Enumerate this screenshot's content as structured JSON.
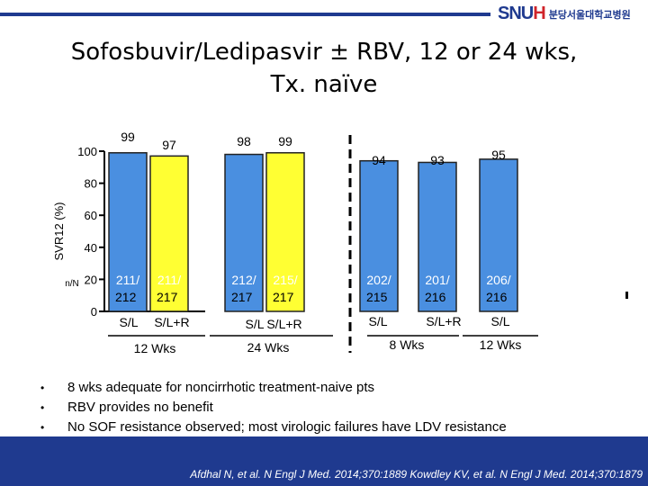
{
  "header": {
    "logo_mark": "SNU",
    "logo_mark_accent": "H",
    "logo_text": "분당서울대학교병원"
  },
  "title_line1": "Sofosbuvir/Ledipasvir ± RBV, 12 or 24 wks,",
  "title_line2": "Tx. naïve",
  "chart_data": {
    "type": "bar",
    "ylabel": "SVR12 (%)",
    "ylim": [
      0,
      100
    ],
    "yticks": [
      "0",
      "20",
      "40",
      "60",
      "80",
      "100"
    ],
    "np_label": "n/N",
    "bars": [
      {
        "regimen": "S/L",
        "value": 99,
        "n": "211/ 212",
        "color": "#4a8fe0"
      },
      {
        "regimen": "S/L+R",
        "value": 97,
        "n": "211/ 217",
        "color": "#ffff33"
      },
      {
        "regimen": "S/L",
        "value": 98,
        "n": "212/ 217",
        "color": "#4a8fe0"
      },
      {
        "regimen": "S/L+R",
        "value": 99,
        "n": "215/ 217",
        "color": "#ffff33"
      },
      {
        "regimen": "S/L",
        "value": 94,
        "n": "202/ 215",
        "color": "#4a8fe0"
      },
      {
        "regimen": "S/L+R",
        "value": 93,
        "n": "201/ 216",
        "color": "#4a8fe0"
      },
      {
        "regimen": "S/L",
        "value": 95,
        "n": "206/ 216",
        "color": "#4a8fe0"
      }
    ],
    "groups": [
      "12 Wks",
      "24 Wks",
      "8 Wks",
      "12 Wks"
    ]
  },
  "bullets": [
    "8 wks adequate for noncirrhotic treatment-naive pts",
    "RBV provides no benefit",
    "No SOF resistance observed; most virologic failures have LDV resistance"
  ],
  "bullet_symbol": "•",
  "citation": "Afdhal N, et al. N Engl J Med. 2014;370:1889 Kowdley KV, et al. N Engl J Med. 2014;370:1879"
}
